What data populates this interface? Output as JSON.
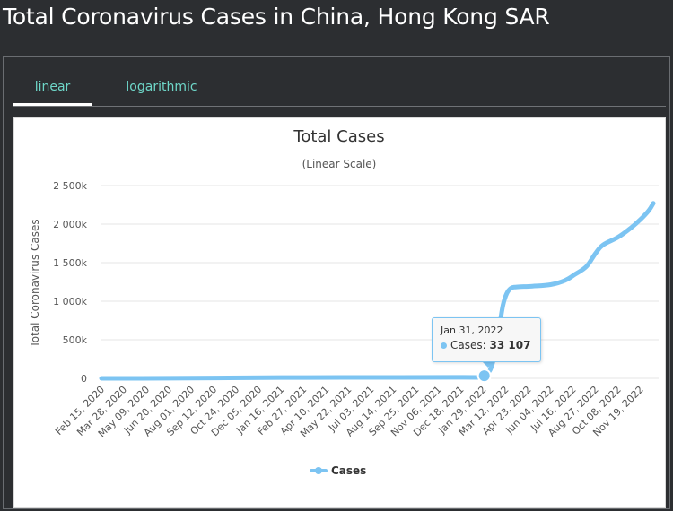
{
  "page": {
    "title": "Total Coronavirus Cases in China, Hong Kong SAR"
  },
  "tabs": [
    {
      "label": "linear",
      "active": true
    },
    {
      "label": "logarithmic",
      "active": false
    }
  ],
  "tooltip": {
    "date": "Jan 31, 2022",
    "series_label": "Cases:",
    "value": "33 107"
  },
  "colors": {
    "series": "#7cc4f2",
    "tab_text": "#6ed6c8",
    "background": "#2c2e31"
  },
  "chart_data": {
    "type": "line",
    "title": "Total Cases",
    "subtitle": "(Linear Scale)",
    "ylabel": "Total Coronavirus Cases",
    "xlabel": "",
    "ylim": [
      0,
      2500000
    ],
    "y_ticks": [
      0,
      500000,
      1000000,
      1500000,
      2000000,
      2500000
    ],
    "y_tick_labels": [
      "0",
      "500k",
      "1 000k",
      "1 500k",
      "2 000k",
      "2 500k"
    ],
    "x_tick_labels": [
      "Feb 15, 2020",
      "Mar 28, 2020",
      "May 09, 2020",
      "Jun 20, 2020",
      "Aug 01, 2020",
      "Sep 12, 2020",
      "Oct 24, 2020",
      "Dec 05, 2020",
      "Jan 16, 2021",
      "Feb 27, 2021",
      "Apr 10, 2021",
      "May 22, 2021",
      "Jul 03, 2021",
      "Aug 14, 2021",
      "Sep 25, 2021",
      "Nov 06, 2021",
      "Dec 18, 2021",
      "Jan 29, 2022",
      "Mar 12, 2022",
      "Apr 23, 2022",
      "Jun 04, 2022",
      "Jul 16, 2022",
      "Aug 27, 2022",
      "Oct 08, 2022",
      "Nov 19, 2022"
    ],
    "grid": true,
    "legend_position": "bottom",
    "highlight": {
      "x": "2022-01-31",
      "y": 33107
    },
    "series": [
      {
        "name": "Cases",
        "points": [
          [
            "2020-02-15",
            56
          ],
          [
            "2020-06-20",
            1150
          ],
          [
            "2020-09-12",
            4990
          ],
          [
            "2021-01-16",
            9600
          ],
          [
            "2021-06-01",
            11900
          ],
          [
            "2021-12-18",
            12600
          ],
          [
            "2022-01-20",
            13300
          ],
          [
            "2022-01-31",
            33107
          ],
          [
            "2022-02-07",
            70000
          ],
          [
            "2022-02-14",
            160000
          ],
          [
            "2022-02-22",
            400000
          ],
          [
            "2022-03-01",
            700000
          ],
          [
            "2022-03-07",
            950000
          ],
          [
            "2022-03-14",
            1100000
          ],
          [
            "2022-03-22",
            1170000
          ],
          [
            "2022-04-01",
            1185000
          ],
          [
            "2022-05-01",
            1195000
          ],
          [
            "2022-06-04",
            1215000
          ],
          [
            "2022-07-01",
            1270000
          ],
          [
            "2022-07-20",
            1350000
          ],
          [
            "2022-08-10",
            1450000
          ],
          [
            "2022-08-27",
            1620000
          ],
          [
            "2022-09-10",
            1730000
          ],
          [
            "2022-10-08",
            1830000
          ],
          [
            "2022-11-01",
            1950000
          ],
          [
            "2022-11-19",
            2060000
          ],
          [
            "2022-12-05",
            2180000
          ],
          [
            "2022-12-13",
            2270000
          ]
        ]
      }
    ]
  }
}
